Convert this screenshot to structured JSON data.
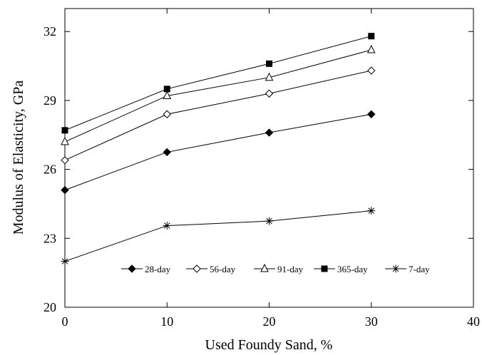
{
  "chart_data": {
    "type": "line",
    "title": "",
    "xlabel": "Used Foundy Sand, %",
    "ylabel": "Modulus of Elasticity, GPa",
    "xlim": [
      0,
      40
    ],
    "ylim": [
      20,
      33
    ],
    "xticks": [
      "0",
      "10",
      "20",
      "30",
      "40"
    ],
    "yticks": [
      "20",
      "23",
      "26",
      "29",
      "32"
    ],
    "grid": false,
    "legend_position": "bottom-center",
    "x": [
      0,
      10,
      20,
      30
    ],
    "series": [
      {
        "name": "28-day",
        "marker": "filled-diamond",
        "values": [
          25.1,
          26.75,
          27.6,
          28.4
        ]
      },
      {
        "name": "56-day",
        "marker": "open-diamond",
        "values": [
          26.4,
          28.4,
          29.3,
          30.3
        ]
      },
      {
        "name": "91-day",
        "marker": "open-triangle",
        "values": [
          27.2,
          29.2,
          30.0,
          31.2
        ]
      },
      {
        "name": "365-day",
        "marker": "filled-square",
        "values": [
          27.7,
          29.5,
          30.6,
          31.8
        ]
      },
      {
        "name": "7-day",
        "marker": "asterisk",
        "values": [
          22.0,
          23.55,
          23.75,
          24.2
        ]
      }
    ]
  }
}
